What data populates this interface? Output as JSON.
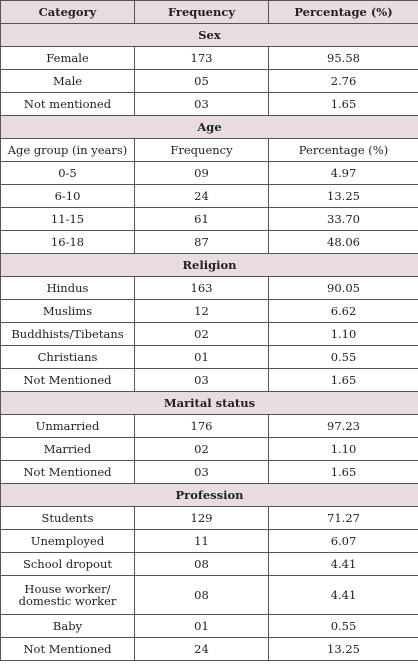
{
  "header": {
    "col1": "Category",
    "col2": "Frequency",
    "col3": "Percentage (%)"
  },
  "sections": [
    {
      "title": "Sex",
      "rows": [
        [
          "Female",
          "173",
          "95.58"
        ],
        [
          "Male",
          "05",
          "2.76"
        ],
        [
          "Not mentioned",
          "03",
          "1.65"
        ]
      ]
    },
    {
      "title": "Age",
      "subheader": [
        "Age group (in years)",
        "Frequency",
        "Percentage (%)"
      ],
      "rows": [
        [
          "0-5",
          "09",
          "4.97"
        ],
        [
          "6-10",
          "24",
          "13.25"
        ],
        [
          "11-15",
          "61",
          "33.70"
        ],
        [
          "16-18",
          "87",
          "48.06"
        ]
      ]
    },
    {
      "title": "Religion",
      "rows": [
        [
          "Hindus",
          "163",
          "90.05"
        ],
        [
          "Muslims",
          "12",
          "6.62"
        ],
        [
          "Buddhists/Tibetans",
          "02",
          "1.10"
        ],
        [
          "Christians",
          "01",
          "0.55"
        ],
        [
          "Not Mentioned",
          "03",
          "1.65"
        ]
      ]
    },
    {
      "title": "Marital status",
      "rows": [
        [
          "Unmarried",
          "176",
          "97.23"
        ],
        [
          "Married",
          "02",
          "1.10"
        ],
        [
          "Not Mentioned",
          "03",
          "1.65"
        ]
      ]
    },
    {
      "title": "Profession",
      "rows": [
        [
          "Students",
          "129",
          "71.27"
        ],
        [
          "Unemployed",
          "11",
          "6.07"
        ],
        [
          "School dropout",
          "08",
          "4.41"
        ],
        [
          "House worker/ domestic worker",
          "08",
          "4.41"
        ],
        [
          "Baby",
          "01",
          "0.55"
        ],
        [
          "Not Mentioned",
          "24",
          "13.25"
        ]
      ]
    }
  ]
}
